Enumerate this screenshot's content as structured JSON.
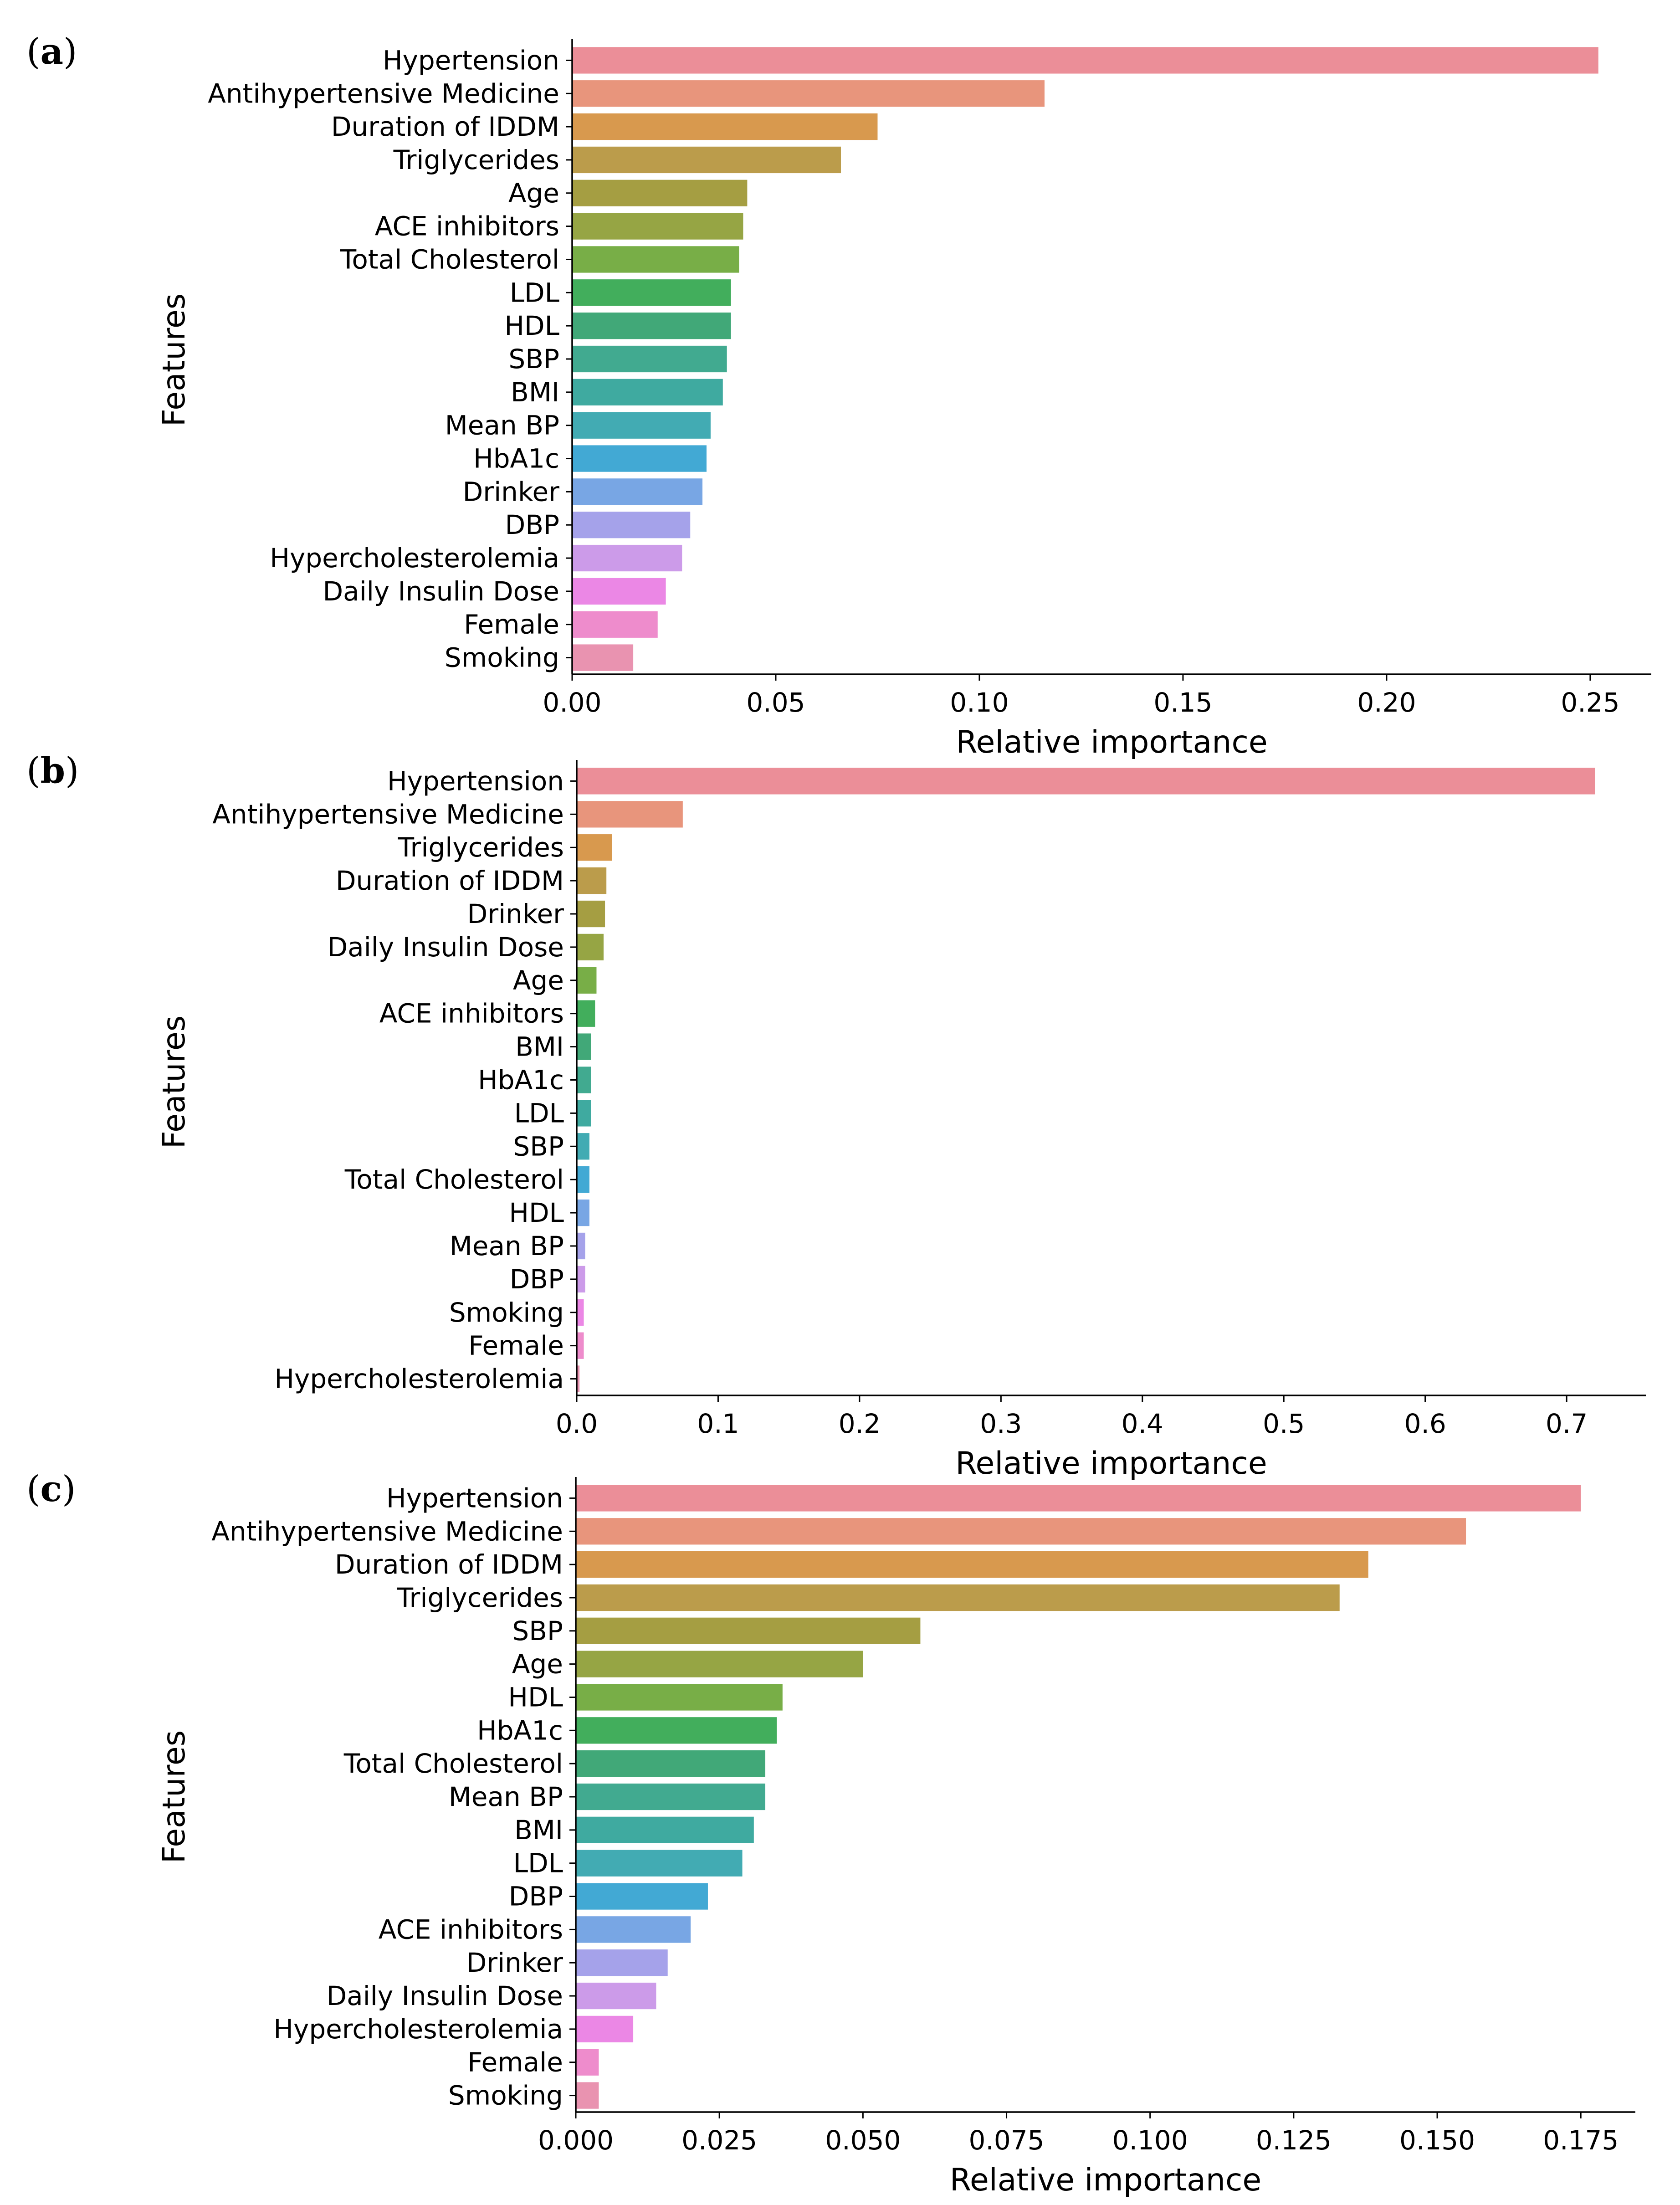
{
  "chart_data": [
    {
      "type": "bar",
      "orientation": "horizontal",
      "panel_label": "a",
      "title": "",
      "xlabel": "Relative importance",
      "ylabel": "Features",
      "xlim": [
        0,
        0.265
      ],
      "xticks": [
        0.0,
        0.05,
        0.1,
        0.15,
        0.2,
        0.25
      ],
      "xtick_labels": [
        "0.00",
        "0.05",
        "0.10",
        "0.15",
        "0.20",
        "0.25"
      ],
      "grid": false,
      "categories": [
        "Hypertension",
        "Antihypertensive Medicine",
        "Duration of IDDM",
        "Triglycerides",
        "Age",
        "ACE inhibitors",
        "Total Cholesterol",
        "LDL",
        "HDL",
        "SBP",
        "BMI",
        "Mean BP",
        "HbA1c",
        "Drinker",
        "DBP",
        "Hypercholesterolemia",
        "Daily Insulin Dose",
        "Female",
        "Smoking"
      ],
      "values": [
        0.252,
        0.116,
        0.075,
        0.066,
        0.043,
        0.042,
        0.041,
        0.039,
        0.039,
        0.038,
        0.037,
        0.034,
        0.033,
        0.032,
        0.029,
        0.027,
        0.023,
        0.021,
        0.015
      ]
    },
    {
      "type": "bar",
      "orientation": "horizontal",
      "panel_label": "b",
      "title": "",
      "xlabel": "Relative importance",
      "ylabel": "Features",
      "xlim": [
        0,
        0.756
      ],
      "xticks": [
        0.0,
        0.1,
        0.2,
        0.3,
        0.4,
        0.5,
        0.6,
        0.7
      ],
      "xtick_labels": [
        "0.0",
        "0.1",
        "0.2",
        "0.3",
        "0.4",
        "0.5",
        "0.6",
        "0.7"
      ],
      "grid": false,
      "categories": [
        "Hypertension",
        "Antihypertensive Medicine",
        "Triglycerides",
        "Duration of IDDM",
        "Drinker",
        "Daily Insulin Dose",
        "Age",
        "ACE inhibitors",
        "BMI",
        "HbA1c",
        "LDL",
        "SBP",
        "Total Cholesterol",
        "HDL",
        "Mean BP",
        "DBP",
        "Smoking",
        "Female",
        "Hypercholesterolemia"
      ],
      "values": [
        0.72,
        0.075,
        0.025,
        0.021,
        0.02,
        0.019,
        0.014,
        0.013,
        0.01,
        0.01,
        0.01,
        0.009,
        0.009,
        0.009,
        0.006,
        0.006,
        0.005,
        0.005,
        0.002
      ]
    },
    {
      "type": "bar",
      "orientation": "horizontal",
      "panel_label": "c",
      "title": "",
      "xlabel": "Relative importance",
      "ylabel": "Features",
      "xlim": [
        0,
        0.1845
      ],
      "xticks": [
        0.0,
        0.025,
        0.05,
        0.075,
        0.1,
        0.125,
        0.15,
        0.175
      ],
      "xtick_labels": [
        "0.000",
        "0.025",
        "0.050",
        "0.075",
        "0.100",
        "0.125",
        "0.150",
        "0.175"
      ],
      "grid": false,
      "categories": [
        "Hypertension",
        "Antihypertensive Medicine",
        "Duration of IDDM",
        "Triglycerides",
        "SBP",
        "Age",
        "HDL",
        "HbA1c",
        "Total Cholesterol",
        "Mean BP",
        "BMI",
        "LDL",
        "DBP",
        "ACE inhibitors",
        "Drinker",
        "Daily Insulin Dose",
        "Hypercholesterolemia",
        "Female",
        "Smoking"
      ],
      "values": [
        0.175,
        0.155,
        0.138,
        0.133,
        0.06,
        0.05,
        0.036,
        0.035,
        0.033,
        0.033,
        0.031,
        0.029,
        0.023,
        0.02,
        0.016,
        0.014,
        0.01,
        0.004,
        0.004
      ]
    }
  ],
  "colors": [
    "#eb8e98",
    "#e8957c",
    "#d8994e",
    "#bb9c4b",
    "#a59e42",
    "#96a544",
    "#78ae47",
    "#42ae5c",
    "#41a878",
    "#41aa90",
    "#3faaa0",
    "#42abb3",
    "#42a9d4",
    "#78a6e4",
    "#a5a2ea",
    "#cc9be9",
    "#eb87e5",
    "#ee8ccc",
    "#e993b0"
  ]
}
